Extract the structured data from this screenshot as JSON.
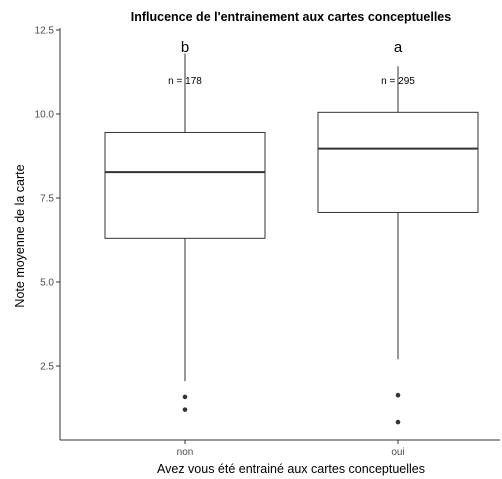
{
  "chart_data": {
    "type": "box",
    "title": "Influcence de l'entrainement aux cartes conceptuelles",
    "xlabel": "Avez vous été entrainé aux cartes conceptuelles",
    "ylabel": "Note moyenne de la carte",
    "ylim": [
      0.8,
      12.5
    ],
    "yticks": [
      "2.5",
      "5.0",
      "7.5",
      "10.0",
      "12.5"
    ],
    "categories": [
      "non",
      "oui"
    ],
    "boxes": [
      {
        "category": "non",
        "whisker_low": 2.05,
        "q1": 6.3,
        "median": 8.27,
        "q3": 9.45,
        "whisker_high": 11.8,
        "outliers": [
          1.58,
          1.2
        ],
        "letter": "b",
        "n_label": "n = 178"
      },
      {
        "category": "oui",
        "whisker_low": 2.7,
        "q1": 7.07,
        "median": 8.97,
        "q3": 10.05,
        "whisker_high": 11.42,
        "outliers": [
          1.63,
          0.83
        ],
        "letter": "a",
        "n_label": "n = 295"
      }
    ],
    "grid": false,
    "legend": "none"
  },
  "colors": {
    "box_stroke": "#333333",
    "median": "#333333",
    "axis": "#333333",
    "outlier": "#333333"
  }
}
